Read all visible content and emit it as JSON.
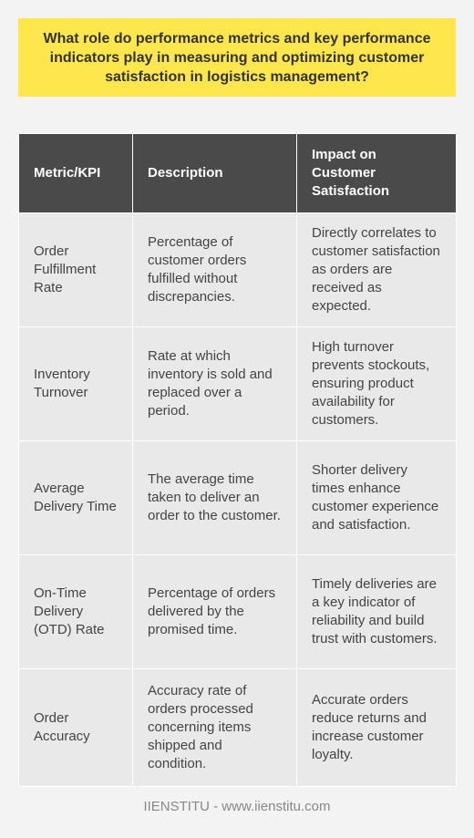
{
  "title": "What role do performance metrics and key performance indicators play in measuring and optimizing customer satisfaction in logistics management?",
  "table": {
    "headers": [
      "Metric/KPI",
      "Description",
      "Impact on Customer Satisfaction"
    ],
    "rows": [
      [
        "Order Fulfillment Rate",
        "Percentage of customer orders fulfilled without discrepancies.",
        "Directly correlates to customer satisfaction as orders are received as expected."
      ],
      [
        "Inventory Turnover",
        "Rate at which inventory is sold and replaced over a period.",
        "High turnover prevents stockouts, ensuring product availability for customers."
      ],
      [
        "Average Delivery Time",
        "The average time taken to deliver an order to the customer.",
        "Shorter delivery times enhance customer experience and satisfaction."
      ],
      [
        "On-Time Delivery (OTD) Rate",
        "Percentage of orders delivered by the promised time.",
        "Timely deliveries are a key indicator of reliability and build trust with customers."
      ],
      [
        "Order Accuracy",
        "Accuracy rate of orders processed concerning items shipped and condition.",
        "Accurate orders reduce returns and increase customer loyalty."
      ]
    ]
  },
  "footer": "IIENSTITU - www.iienstitu.com",
  "colors": {
    "title_bg": "#fde74c",
    "header_bg": "#4a4a4a",
    "cell_bg": "#e9e9e9",
    "page_bg": "#f3f3f3"
  }
}
